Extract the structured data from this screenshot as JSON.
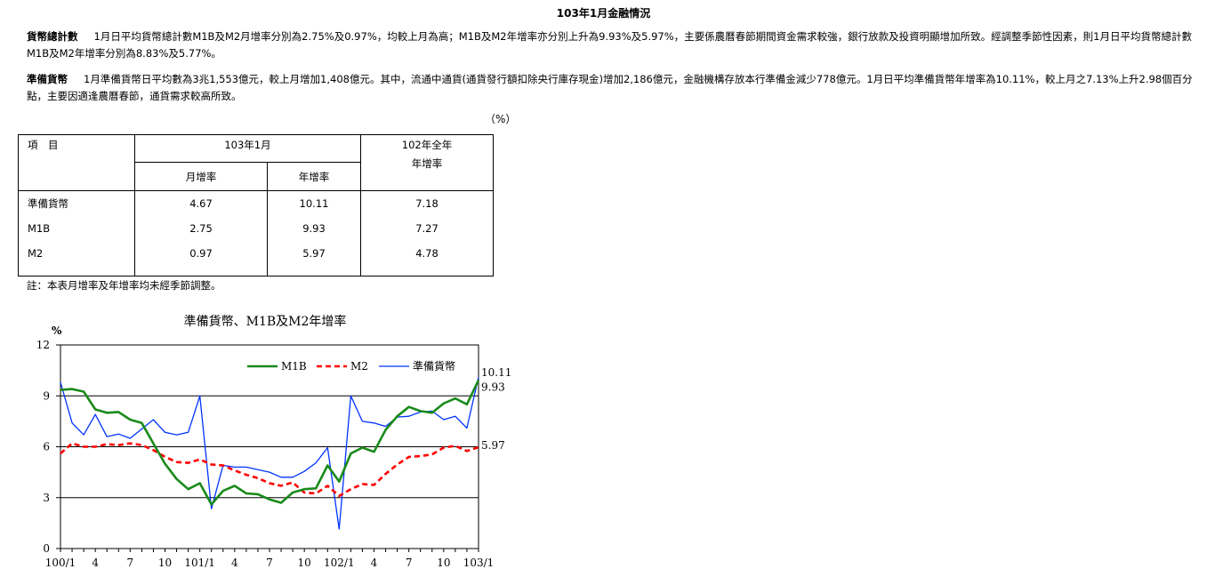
{
  "page_title": "103年1月金融情況",
  "paragraphs": [
    {
      "heading": "貨幣總計數",
      "text": "1月日平均貨幣總計數M1B及M2月增率分別為2.75%及0.97%，均較上月為高；M1B及M2年增率亦分別上升為9.93%及5.97%，主要係農曆春節期間資金需求較強，銀行放款及投資明顯增加所致。經調整季節性因素，則1月日平均貨幣總計數M1B及M2年增率分別為8.83%及5.77%。"
    },
    {
      "heading": "準備貨幣",
      "text": "1月準備貨幣日平均數為3兆1,553億元，較上月增加1,408億元。其中，流通中通貨(通貨發行額扣除央行庫存現金)增加2,186億元，金融機構存放本行準備金減少778億元。1月日平均準備貨幣年增率為10.11%，較上月之7.13%上升2.98個百分點，主要因適逢農曆春節，通貨需求較高所致。"
    }
  ],
  "unit_label": "（%）",
  "table": {
    "item_header": "項　目",
    "month_header": "103年1月",
    "year_header_line1": "102年全年",
    "year_header_line2": "年增率",
    "mom_header": "月增率",
    "yoy_header": "年增率",
    "rows": [
      {
        "label": "準備貨幣",
        "mom": "4.67",
        "yoy": "10.11",
        "annual": "7.18"
      },
      {
        "label": "M1B",
        "mom": "2.75",
        "yoy": "9.93",
        "annual": "7.27"
      },
      {
        "label": "M2",
        "mom": "0.97",
        "yoy": "5.97",
        "annual": "4.78"
      }
    ]
  },
  "note": "註：本表月增率及年增率均未經季節調整。",
  "chart_data": {
    "type": "line",
    "title": "準備貨幣、M1B及M2年增率",
    "ylabel": "%",
    "ylim": [
      0,
      12
    ],
    "yticks": [
      "0",
      "3",
      "6",
      "9",
      "12"
    ],
    "x_count": 37,
    "xtick_labels": [
      {
        "index": 0,
        "label": "100/1"
      },
      {
        "index": 3,
        "label": "4"
      },
      {
        "index": 6,
        "label": "7"
      },
      {
        "index": 9,
        "label": "10"
      },
      {
        "index": 12,
        "label": "101/1"
      },
      {
        "index": 15,
        "label": "4"
      },
      {
        "index": 18,
        "label": "7"
      },
      {
        "index": 21,
        "label": "10"
      },
      {
        "index": 24,
        "label": "102/1"
      },
      {
        "index": 27,
        "label": "4"
      },
      {
        "index": 30,
        "label": "7"
      },
      {
        "index": 33,
        "label": "10"
      },
      {
        "index": 36,
        "label": "103/1"
      }
    ],
    "gridlines": [
      3,
      6,
      9
    ],
    "legend_position": "top",
    "series": [
      {
        "name": "M1B",
        "color": "#1a8a1a",
        "dash": "solid",
        "values": [
          9.35,
          9.4,
          9.25,
          8.2,
          8.0,
          8.05,
          7.6,
          7.4,
          6.2,
          5.0,
          4.1,
          3.5,
          3.85,
          2.6,
          3.4,
          3.7,
          3.25,
          3.2,
          2.9,
          2.7,
          3.3,
          3.5,
          3.55,
          4.9,
          3.95,
          5.6,
          5.95,
          5.7,
          7.0,
          7.8,
          8.35,
          8.1,
          8.0,
          8.55,
          8.85,
          8.5,
          9.93
        ],
        "end_label": "9.93"
      },
      {
        "name": "M2",
        "color": "#ff0000",
        "dash": "dashed",
        "values": [
          5.6,
          6.2,
          6.0,
          6.0,
          6.15,
          6.1,
          6.2,
          6.1,
          5.8,
          5.4,
          5.1,
          5.05,
          5.25,
          4.95,
          4.9,
          4.6,
          4.35,
          4.15,
          3.85,
          3.7,
          3.9,
          3.3,
          3.25,
          3.7,
          3.1,
          3.5,
          3.8,
          3.75,
          4.4,
          4.95,
          5.4,
          5.45,
          5.55,
          5.95,
          6.05,
          5.75,
          5.97
        ],
        "end_label": "5.97"
      },
      {
        "name": "準備貨幣",
        "color": "#0033ff",
        "dash": "solid",
        "values": [
          9.8,
          7.4,
          6.7,
          7.9,
          6.6,
          6.75,
          6.5,
          7.05,
          7.6,
          6.85,
          6.7,
          6.85,
          9.0,
          2.35,
          4.9,
          4.8,
          4.8,
          4.65,
          4.5,
          4.2,
          4.2,
          4.55,
          5.05,
          5.95,
          1.15,
          9.0,
          7.5,
          7.4,
          7.2,
          7.75,
          7.8,
          8.05,
          8.1,
          7.6,
          7.8,
          7.1,
          10.11
        ],
        "end_label": "10.11"
      }
    ]
  }
}
